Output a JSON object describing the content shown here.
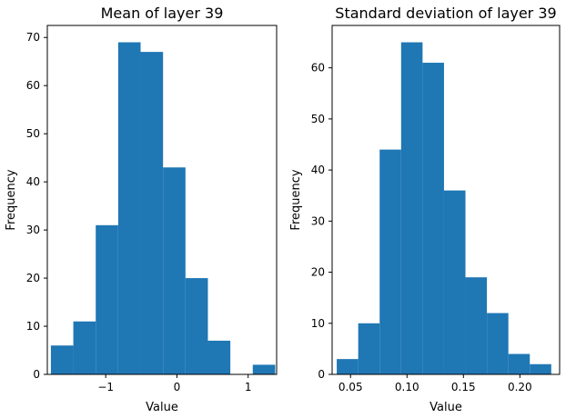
{
  "chart_data": [
    {
      "type": "bar",
      "subtype": "histogram",
      "title": "Mean of layer 39",
      "xlabel": "Value",
      "ylabel": "Frequency",
      "color": "#1f77b4",
      "xlim": [
        -1.82,
        1.4
      ],
      "ylim": [
        0,
        72.5
      ],
      "xticks": [
        -1,
        0,
        1
      ],
      "xtick_labels": [
        "−1",
        "0",
        "1"
      ],
      "yticks": [
        0,
        10,
        20,
        30,
        40,
        50,
        60,
        70
      ],
      "ytick_labels": [
        "0",
        "10",
        "20",
        "30",
        "40",
        "50",
        "60",
        "70"
      ],
      "bin_edges": [
        -1.77,
        -1.455,
        -1.14,
        -0.825,
        -0.51,
        -0.195,
        0.12,
        0.435,
        0.75,
        1.065,
        1.38
      ],
      "values": [
        6,
        11,
        31,
        69,
        67,
        43,
        20,
        7,
        0,
        2
      ],
      "grid": false,
      "legend": false
    },
    {
      "type": "bar",
      "subtype": "histogram",
      "title": "Standard deviation of layer 39",
      "xlabel": "Value",
      "ylabel": "Frequency",
      "color": "#1f77b4",
      "xlim": [
        0.0337,
        0.2352
      ],
      "ylim": [
        0,
        68.3
      ],
      "xticks": [
        0.05,
        0.1,
        0.15,
        0.2
      ],
      "xtick_labels": [
        "0.05",
        "0.10",
        "0.15",
        "0.20"
      ],
      "yticks": [
        0,
        10,
        20,
        30,
        40,
        50,
        60
      ],
      "ytick_labels": [
        "0",
        "10",
        "20",
        "30",
        "40",
        "50",
        "60"
      ],
      "bin_edges": [
        0.0378,
        0.0568,
        0.0758,
        0.0948,
        0.1138,
        0.1328,
        0.1518,
        0.1708,
        0.1898,
        0.2088,
        0.2278
      ],
      "values": [
        3,
        10,
        44,
        65,
        61,
        36,
        19,
        12,
        4,
        2
      ],
      "grid": false,
      "legend": false
    }
  ]
}
